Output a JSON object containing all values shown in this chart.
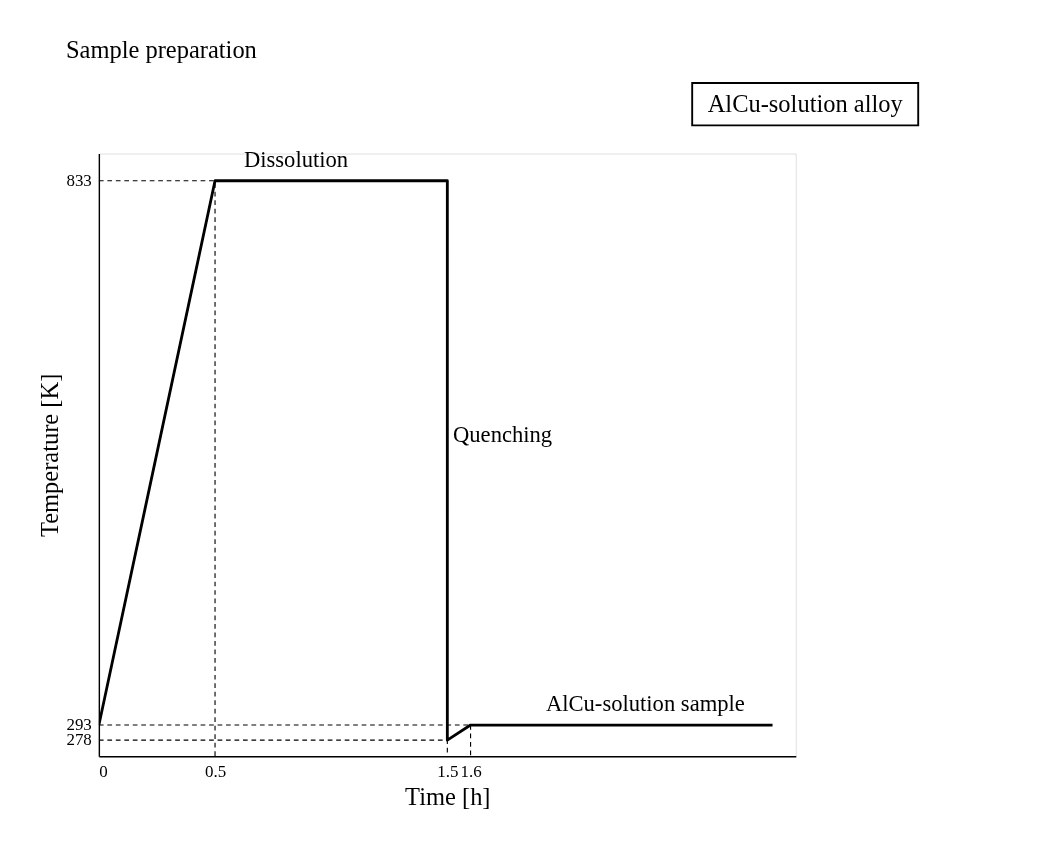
{
  "chart_data": {
    "type": "line",
    "title": "Sample preparation",
    "xlabel": "Time [h]",
    "ylabel": "Temperature [K]",
    "xlim": [
      0,
      3
    ],
    "xticks": [
      0,
      0.5,
      1.5,
      1.6
    ],
    "ylim": [
      262,
      860
    ],
    "yticks": [
      278,
      293,
      833
    ],
    "grid": false,
    "marker": "none",
    "series": [
      {
        "line_style": "solid",
        "color": "#000000",
        "x": [
          0,
          0.5,
          1.5,
          1.5,
          1.6,
          2.9
        ],
        "values": [
          293,
          833,
          833,
          278,
          293,
          293
        ]
      },
      {
        "line_style": "dashed",
        "color": "#000000",
        "x": [
          0,
          0.5,
          0.5
        ],
        "values": [
          833,
          833,
          262
        ]
      },
      {
        "line_style": "dashed",
        "color": "#000000",
        "x": [
          0,
          1.5,
          1.5
        ],
        "values": [
          278,
          278,
          262
        ]
      },
      {
        "line_style": "dashed",
        "color": "#000000",
        "x": [
          0,
          1.6
        ],
        "values": [
          293,
          293
        ]
      },
      {
        "line_style": "dashed",
        "color": "#000000",
        "x": [
          1.6,
          1.6
        ],
        "values": [
          293,
          262
        ]
      }
    ],
    "annotations": [
      "AlCu-solution alloy",
      {
        "text": "Dissolution",
        "x": 0.6,
        "y": 833
      },
      {
        "text": "Quenching",
        "x": 1.5,
        "y": 560
      },
      {
        "text": "AlCu-solution sample",
        "x": 1.9,
        "y": 293
      }
    ]
  }
}
